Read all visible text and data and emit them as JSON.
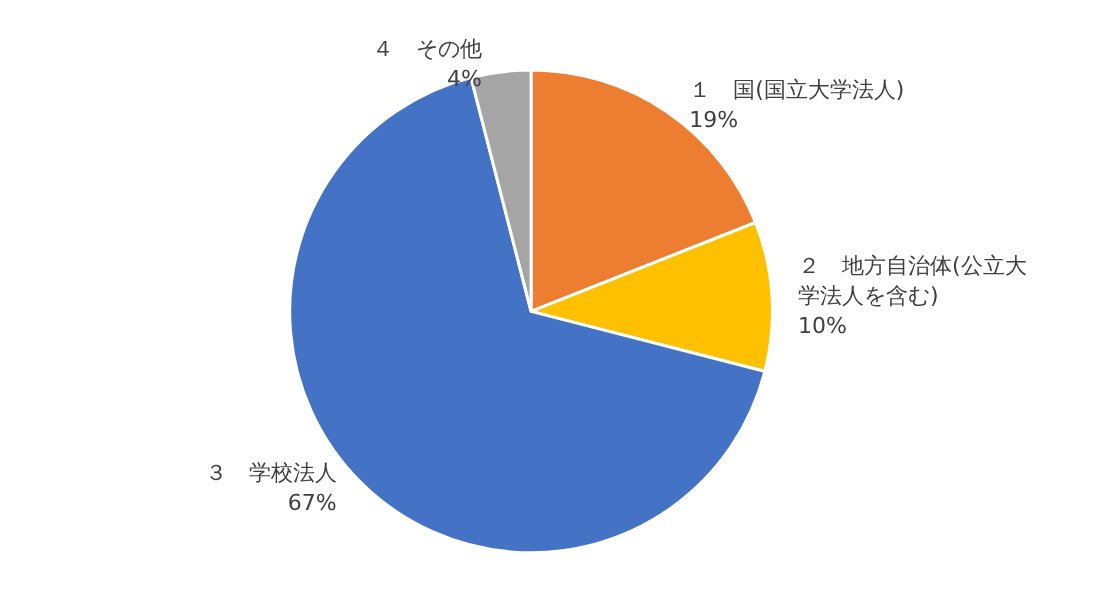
{
  "chart_data": {
    "type": "pie",
    "categories": [
      "１　国(国立大学法人)",
      "２　地方自治体(公立大学法人を含む)",
      "３　学校法人",
      "４　その他"
    ],
    "values": [
      19,
      10,
      67,
      4
    ],
    "colors": [
      "#ed7d31",
      "#ffc000",
      "#4472c4",
      "#a5a5a5"
    ],
    "value_labels": [
      "19%",
      "10%",
      "67%",
      "4%"
    ],
    "legend": false
  }
}
